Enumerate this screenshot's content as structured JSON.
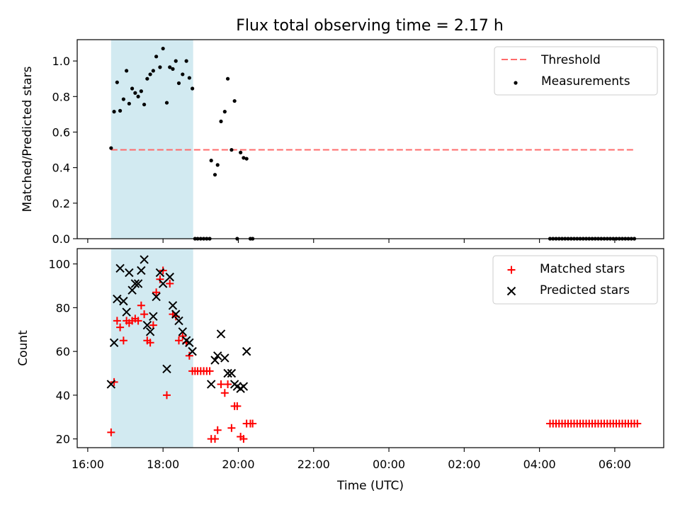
{
  "figure": {
    "title": "Flux total observing time = 2.17 h"
  },
  "colors": {
    "shade": "#add8e6",
    "threshold": "#ff6b6b",
    "matched": "#ff0000",
    "predicted": "#000000",
    "measurements": "#000000"
  },
  "chart_data": [
    {
      "type": "scatter",
      "ylabel": "Matched/Predicted stars",
      "xlim": [
        15.72,
        31.3
      ],
      "ylim": [
        0,
        1.12
      ],
      "yticks": [
        0.0,
        0.2,
        0.4,
        0.6,
        0.8,
        1.0
      ],
      "ytick_labels": [
        "0.0",
        "0.2",
        "0.4",
        "0.6",
        "0.8",
        "1.0"
      ],
      "xticks": [
        16,
        18,
        20,
        22,
        24,
        26,
        28,
        30
      ],
      "shaded_span": [
        16.62,
        18.8
      ],
      "legend_position": "upper right",
      "threshold": {
        "name": "Threshold",
        "value": 0.5,
        "x_range": [
          16.62,
          30.55
        ],
        "style": "dashed"
      },
      "series": [
        {
          "name": "Measurements",
          "marker": "dot",
          "points": [
            [
              16.62,
              0.51
            ],
            [
              16.7,
              0.715
            ],
            [
              16.78,
              0.88
            ],
            [
              16.86,
              0.72
            ],
            [
              16.95,
              0.785
            ],
            [
              17.03,
              0.945
            ],
            [
              17.1,
              0.76
            ],
            [
              17.18,
              0.845
            ],
            [
              17.26,
              0.82
            ],
            [
              17.34,
              0.8
            ],
            [
              17.42,
              0.83
            ],
            [
              17.5,
              0.755
            ],
            [
              17.58,
              0.9
            ],
            [
              17.66,
              0.925
            ],
            [
              17.74,
              0.945
            ],
            [
              17.82,
              1.025
            ],
            [
              17.92,
              0.965
            ],
            [
              18.0,
              1.07
            ],
            [
              18.1,
              0.765
            ],
            [
              18.18,
              0.965
            ],
            [
              18.26,
              0.955
            ],
            [
              18.34,
              1.0
            ],
            [
              18.42,
              0.875
            ],
            [
              18.52,
              0.925
            ],
            [
              18.62,
              1.0
            ],
            [
              18.7,
              0.905
            ],
            [
              18.78,
              0.845
            ],
            [
              18.85,
              0.0
            ],
            [
              18.92,
              0.0
            ],
            [
              19.0,
              0.0
            ],
            [
              19.08,
              0.0
            ],
            [
              19.16,
              0.0
            ],
            [
              19.24,
              0.0
            ],
            [
              19.28,
              0.44
            ],
            [
              19.38,
              0.36
            ],
            [
              19.45,
              0.415
            ],
            [
              19.54,
              0.66
            ],
            [
              19.64,
              0.715
            ],
            [
              19.72,
              0.9
            ],
            [
              19.82,
              0.5
            ],
            [
              19.9,
              0.775
            ],
            [
              19.97,
              0.0
            ],
            [
              20.06,
              0.485
            ],
            [
              20.14,
              0.455
            ],
            [
              20.22,
              0.45
            ],
            [
              20.32,
              0.0
            ],
            [
              20.38,
              0.0
            ],
            [
              28.28,
              0.0
            ],
            [
              28.36,
              0.0
            ],
            [
              28.44,
              0.0
            ],
            [
              28.52,
              0.0
            ],
            [
              28.6,
              0.0
            ],
            [
              28.68,
              0.0
            ],
            [
              28.76,
              0.0
            ],
            [
              28.84,
              0.0
            ],
            [
              28.92,
              0.0
            ],
            [
              29.0,
              0.0
            ],
            [
              29.08,
              0.0
            ],
            [
              29.16,
              0.0
            ],
            [
              29.24,
              0.0
            ],
            [
              29.32,
              0.0
            ],
            [
              29.4,
              0.0
            ],
            [
              29.48,
              0.0
            ],
            [
              29.56,
              0.0
            ],
            [
              29.64,
              0.0
            ],
            [
              29.72,
              0.0
            ],
            [
              29.8,
              0.0
            ],
            [
              29.88,
              0.0
            ],
            [
              29.96,
              0.0
            ],
            [
              30.04,
              0.0
            ],
            [
              30.12,
              0.0
            ],
            [
              30.2,
              0.0
            ],
            [
              30.28,
              0.0
            ],
            [
              30.36,
              0.0
            ],
            [
              30.44,
              0.0
            ],
            [
              30.52,
              0.0
            ]
          ]
        }
      ]
    },
    {
      "type": "scatter",
      "xlabel": "Time (UTC)",
      "ylabel": "Count",
      "xlim": [
        15.72,
        31.3
      ],
      "ylim": [
        16,
        107
      ],
      "yticks": [
        20,
        40,
        60,
        80,
        100
      ],
      "ytick_labels": [
        "20",
        "40",
        "60",
        "80",
        "100"
      ],
      "xticks": [
        16,
        18,
        20,
        22,
        24,
        26,
        28,
        30
      ],
      "xtick_labels": [
        "16:00",
        "18:00",
        "20:00",
        "22:00",
        "00:00",
        "02:00",
        "04:00",
        "06:00"
      ],
      "shaded_span": [
        16.62,
        18.8
      ],
      "legend_position": "upper right",
      "series": [
        {
          "name": "Matched stars",
          "marker": "plus",
          "points": [
            [
              16.62,
              23
            ],
            [
              16.7,
              46
            ],
            [
              16.78,
              74
            ],
            [
              16.86,
              71
            ],
            [
              16.95,
              65
            ],
            [
              17.03,
              74
            ],
            [
              17.1,
              73
            ],
            [
              17.18,
              74
            ],
            [
              17.26,
              75
            ],
            [
              17.34,
              74
            ],
            [
              17.42,
              81
            ],
            [
              17.5,
              77
            ],
            [
              17.58,
              65
            ],
            [
              17.66,
              64
            ],
            [
              17.74,
              72
            ],
            [
              17.82,
              87
            ],
            [
              17.92,
              93
            ],
            [
              18.0,
              97
            ],
            [
              18.1,
              40
            ],
            [
              18.18,
              91
            ],
            [
              18.26,
              77
            ],
            [
              18.34,
              76
            ],
            [
              18.42,
              65
            ],
            [
              18.52,
              67
            ],
            [
              18.62,
              64
            ],
            [
              18.7,
              58
            ],
            [
              18.78,
              51
            ],
            [
              18.85,
              51
            ],
            [
              18.92,
              51
            ],
            [
              19.0,
              51
            ],
            [
              19.08,
              51
            ],
            [
              19.16,
              51
            ],
            [
              19.24,
              51
            ],
            [
              19.28,
              20
            ],
            [
              19.38,
              20
            ],
            [
              19.45,
              24
            ],
            [
              19.54,
              45
            ],
            [
              19.64,
              41
            ],
            [
              19.72,
              45
            ],
            [
              19.82,
              25
            ],
            [
              19.9,
              35
            ],
            [
              19.97,
              35
            ],
            [
              20.06,
              21
            ],
            [
              20.14,
              20
            ],
            [
              20.22,
              27
            ],
            [
              20.32,
              27
            ],
            [
              20.38,
              27
            ],
            [
              28.28,
              27
            ],
            [
              28.36,
              27
            ],
            [
              28.44,
              27
            ],
            [
              28.52,
              27
            ],
            [
              28.6,
              27
            ],
            [
              28.68,
              27
            ],
            [
              28.76,
              27
            ],
            [
              28.84,
              27
            ],
            [
              28.92,
              27
            ],
            [
              29.0,
              27
            ],
            [
              29.08,
              27
            ],
            [
              29.16,
              27
            ],
            [
              29.24,
              27
            ],
            [
              29.32,
              27
            ],
            [
              29.4,
              27
            ],
            [
              29.48,
              27
            ],
            [
              29.56,
              27
            ],
            [
              29.64,
              27
            ],
            [
              29.72,
              27
            ],
            [
              29.8,
              27
            ],
            [
              29.88,
              27
            ],
            [
              29.96,
              27
            ],
            [
              30.04,
              27
            ],
            [
              30.12,
              27
            ],
            [
              30.2,
              27
            ],
            [
              30.28,
              27
            ],
            [
              30.36,
              27
            ],
            [
              30.44,
              27
            ],
            [
              30.52,
              27
            ],
            [
              30.6,
              27
            ]
          ]
        },
        {
          "name": "Predicted stars",
          "marker": "x",
          "points": [
            [
              16.62,
              45
            ],
            [
              16.7,
              64
            ],
            [
              16.78,
              84
            ],
            [
              16.86,
              98
            ],
            [
              16.95,
              83
            ],
            [
              17.03,
              78
            ],
            [
              17.1,
              96
            ],
            [
              17.18,
              88
            ],
            [
              17.26,
              91
            ],
            [
              17.34,
              91
            ],
            [
              17.42,
              97
            ],
            [
              17.5,
              102
            ],
            [
              17.58,
              72
            ],
            [
              17.66,
              69
            ],
            [
              17.74,
              76
            ],
            [
              17.82,
              85
            ],
            [
              17.92,
              96
            ],
            [
              18.0,
              91
            ],
            [
              18.1,
              52
            ],
            [
              18.18,
              94
            ],
            [
              18.26,
              81
            ],
            [
              18.34,
              77
            ],
            [
              18.42,
              74
            ],
            [
              18.52,
              69
            ],
            [
              18.62,
              65
            ],
            [
              18.7,
              64
            ],
            [
              18.78,
              60
            ],
            [
              19.28,
              45
            ],
            [
              19.38,
              56
            ],
            [
              19.45,
              58
            ],
            [
              19.54,
              68
            ],
            [
              19.64,
              57
            ],
            [
              19.72,
              50
            ],
            [
              19.82,
              50
            ],
            [
              19.9,
              45
            ],
            [
              19.97,
              44
            ],
            [
              20.06,
              43
            ],
            [
              20.14,
              44
            ],
            [
              20.22,
              60
            ]
          ]
        }
      ]
    }
  ]
}
